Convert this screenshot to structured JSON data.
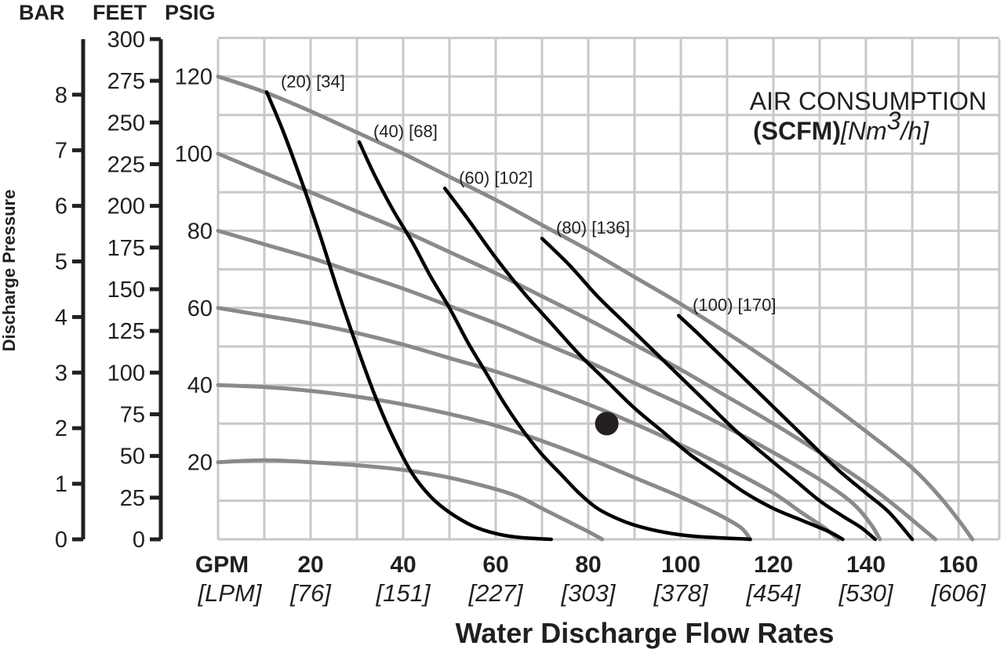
{
  "chart_data": {
    "type": "line",
    "axis_headers": {
      "bar": "BAR",
      "feet": "FEET",
      "psig": "PSIG"
    },
    "y_title": "Discharge Pressure",
    "x_title": "Water Discharge Flow Rates",
    "x_unit_gpm": "GPM",
    "x_unit_lpm": "[LPM]",
    "x_range_gpm": [
      0,
      170
    ],
    "psig_range": [
      0,
      130
    ],
    "grid": true,
    "x_ticks": [
      {
        "gpm": 20,
        "gpm_label": "20",
        "lpm_label": "[76]"
      },
      {
        "gpm": 40,
        "gpm_label": "40",
        "lpm_label": "[151]"
      },
      {
        "gpm": 60,
        "gpm_label": "60",
        "lpm_label": "[227]"
      },
      {
        "gpm": 80,
        "gpm_label": "80",
        "lpm_label": "[303]"
      },
      {
        "gpm": 100,
        "gpm_label": "100",
        "lpm_label": "[378]"
      },
      {
        "gpm": 120,
        "gpm_label": "120",
        "lpm_label": "[454]"
      },
      {
        "gpm": 140,
        "gpm_label": "140",
        "lpm_label": "[530]"
      },
      {
        "gpm": 160,
        "gpm_label": "160",
        "lpm_label": "[606]"
      }
    ],
    "bar_ticks": [
      {
        "value": 0,
        "label": "0"
      },
      {
        "value": 1,
        "label": "1"
      },
      {
        "value": 2,
        "label": "2"
      },
      {
        "value": 3,
        "label": "3"
      },
      {
        "value": 4,
        "label": "4"
      },
      {
        "value": 5,
        "label": "5"
      },
      {
        "value": 6,
        "label": "6"
      },
      {
        "value": 7,
        "label": "7"
      },
      {
        "value": 8,
        "label": "8"
      }
    ],
    "feet_ticks": [
      {
        "value": 0,
        "label": "0"
      },
      {
        "value": 25,
        "label": "25"
      },
      {
        "value": 50,
        "label": "50"
      },
      {
        "value": 75,
        "label": "75"
      },
      {
        "value": 100,
        "label": "100"
      },
      {
        "value": 125,
        "label": "125"
      },
      {
        "value": 150,
        "label": "150"
      },
      {
        "value": 175,
        "label": "175"
      },
      {
        "value": 200,
        "label": "200"
      },
      {
        "value": 225,
        "label": "225"
      },
      {
        "value": 250,
        "label": "250"
      },
      {
        "value": 275,
        "label": "275"
      },
      {
        "value": 300,
        "label": "300"
      }
    ],
    "psig_ticks": [
      {
        "value": 20,
        "label": "20"
      },
      {
        "value": 40,
        "label": "40"
      },
      {
        "value": 60,
        "label": "60"
      },
      {
        "value": 80,
        "label": "80"
      },
      {
        "value": 100,
        "label": "100"
      },
      {
        "value": 120,
        "label": "120"
      }
    ],
    "legend": {
      "title": "AIR CONSUMPTION",
      "unit_bold": "(SCFM)",
      "unit_italic_pre": "[Nm",
      "unit_sup": "3",
      "unit_italic_post": "/h]"
    },
    "air_consumption_curves": [
      {
        "label": "(20) [34]",
        "points": [
          [
            10.5,
            116
          ],
          [
            14,
            106
          ],
          [
            18,
            93
          ],
          [
            22,
            79
          ],
          [
            26,
            64
          ],
          [
            30,
            50
          ],
          [
            34,
            37
          ],
          [
            38,
            26
          ],
          [
            42,
            17
          ],
          [
            46,
            11
          ],
          [
            50,
            7
          ],
          [
            55,
            3.5
          ],
          [
            60,
            1.5
          ],
          [
            65,
            0.5
          ],
          [
            72,
            0
          ]
        ]
      },
      {
        "label": "(40) [68]",
        "points": [
          [
            30.5,
            103
          ],
          [
            34,
            94
          ],
          [
            38,
            85
          ],
          [
            42,
            77
          ],
          [
            46,
            68
          ],
          [
            50,
            60
          ],
          [
            54,
            51
          ],
          [
            58,
            43
          ],
          [
            62,
            35
          ],
          [
            66,
            28
          ],
          [
            70,
            22
          ],
          [
            74,
            17
          ],
          [
            78,
            12
          ],
          [
            82,
            8
          ],
          [
            87,
            5
          ],
          [
            92,
            3
          ],
          [
            98,
            1.5
          ],
          [
            104,
            0.7
          ],
          [
            115,
            0
          ]
        ]
      },
      {
        "label": "(60) [102]",
        "points": [
          [
            49,
            91
          ],
          [
            54,
            83
          ],
          [
            60,
            73
          ],
          [
            66,
            64
          ],
          [
            72,
            56
          ],
          [
            78,
            48
          ],
          [
            84,
            41
          ],
          [
            90,
            34
          ],
          [
            96,
            28
          ],
          [
            102,
            22
          ],
          [
            108,
            17
          ],
          [
            114,
            12
          ],
          [
            120,
            8
          ],
          [
            126,
            5
          ],
          [
            132,
            2
          ],
          [
            135,
            0
          ]
        ]
      },
      {
        "label": "(80) [136]",
        "points": [
          [
            70,
            78
          ],
          [
            76,
            71
          ],
          [
            82,
            63
          ],
          [
            88,
            56
          ],
          [
            94,
            49
          ],
          [
            100,
            42
          ],
          [
            106,
            35
          ],
          [
            112,
            28
          ],
          [
            118,
            22
          ],
          [
            124,
            16
          ],
          [
            130,
            10
          ],
          [
            135,
            6
          ],
          [
            139,
            3
          ],
          [
            142,
            0
          ]
        ]
      },
      {
        "label": "(100) [170]",
        "points": [
          [
            99.5,
            58
          ],
          [
            104,
            53
          ],
          [
            110,
            46
          ],
          [
            116,
            39
          ],
          [
            122,
            32
          ],
          [
            128,
            25
          ],
          [
            134,
            18
          ],
          [
            140,
            12
          ],
          [
            145,
            7
          ],
          [
            150,
            0
          ]
        ]
      }
    ],
    "pressure_curves": [
      {
        "points": [
          [
            0,
            120
          ],
          [
            10,
            116
          ],
          [
            20,
            111
          ],
          [
            30,
            105.5
          ],
          [
            40,
            100
          ],
          [
            50,
            94
          ],
          [
            60,
            88
          ],
          [
            70,
            81.5
          ],
          [
            80,
            75
          ],
          [
            90,
            68
          ],
          [
            100,
            61
          ],
          [
            110,
            53.5
          ],
          [
            120,
            45.5
          ],
          [
            130,
            37
          ],
          [
            140,
            28
          ],
          [
            150,
            18.5
          ],
          [
            156,
            11
          ],
          [
            160,
            5
          ],
          [
            163,
            0
          ]
        ]
      },
      {
        "points": [
          [
            0,
            100
          ],
          [
            10,
            95
          ],
          [
            20,
            90
          ],
          [
            30,
            85
          ],
          [
            40,
            80
          ],
          [
            50,
            74.5
          ],
          [
            60,
            69
          ],
          [
            70,
            63
          ],
          [
            80,
            57
          ],
          [
            90,
            50.5
          ],
          [
            100,
            44
          ],
          [
            110,
            37
          ],
          [
            120,
            30
          ],
          [
            130,
            22.5
          ],
          [
            140,
            14.5
          ],
          [
            147,
            8
          ],
          [
            152,
            3
          ],
          [
            155,
            0
          ]
        ]
      },
      {
        "points": [
          [
            0,
            80
          ],
          [
            10,
            76.5
          ],
          [
            20,
            73
          ],
          [
            30,
            69
          ],
          [
            40,
            65
          ],
          [
            50,
            60.5
          ],
          [
            60,
            56
          ],
          [
            70,
            51
          ],
          [
            80,
            46
          ],
          [
            90,
            40.5
          ],
          [
            100,
            35
          ],
          [
            110,
            29
          ],
          [
            120,
            22.5
          ],
          [
            130,
            15.5
          ],
          [
            137,
            9.5
          ],
          [
            141,
            4
          ],
          [
            143,
            0
          ]
        ]
      },
      {
        "points": [
          [
            0,
            60
          ],
          [
            10,
            58
          ],
          [
            20,
            56
          ],
          [
            30,
            53.5
          ],
          [
            40,
            50.5
          ],
          [
            50,
            47
          ],
          [
            60,
            43.5
          ],
          [
            70,
            39.5
          ],
          [
            80,
            35
          ],
          [
            90,
            30
          ],
          [
            100,
            24.5
          ],
          [
            110,
            18.5
          ],
          [
            120,
            12
          ],
          [
            126,
            7
          ],
          [
            131,
            3
          ],
          [
            134,
            0
          ]
        ]
      },
      {
        "points": [
          [
            0,
            40
          ],
          [
            10,
            39.5
          ],
          [
            20,
            38.5
          ],
          [
            30,
            37
          ],
          [
            40,
            35
          ],
          [
            50,
            32.5
          ],
          [
            60,
            29.5
          ],
          [
            70,
            25.5
          ],
          [
            80,
            21
          ],
          [
            90,
            16
          ],
          [
            100,
            11
          ],
          [
            108,
            6.5
          ],
          [
            113,
            3
          ],
          [
            115,
            0
          ]
        ]
      },
      {
        "points": [
          [
            0,
            20
          ],
          [
            10,
            20.5
          ],
          [
            20,
            20
          ],
          [
            30,
            19.2
          ],
          [
            40,
            18
          ],
          [
            50,
            16
          ],
          [
            60,
            13
          ],
          [
            65,
            11
          ],
          [
            70,
            8
          ],
          [
            75,
            5
          ],
          [
            80,
            2
          ],
          [
            83,
            0
          ]
        ]
      }
    ],
    "operating_point": {
      "gpm": 84,
      "psig": 30
    },
    "colors": {
      "pressure_curve": "#8a8a8a",
      "air_curve": "#000000",
      "grid": "#c8c8c8",
      "axis": "#231f20",
      "point": "#231f20"
    }
  }
}
